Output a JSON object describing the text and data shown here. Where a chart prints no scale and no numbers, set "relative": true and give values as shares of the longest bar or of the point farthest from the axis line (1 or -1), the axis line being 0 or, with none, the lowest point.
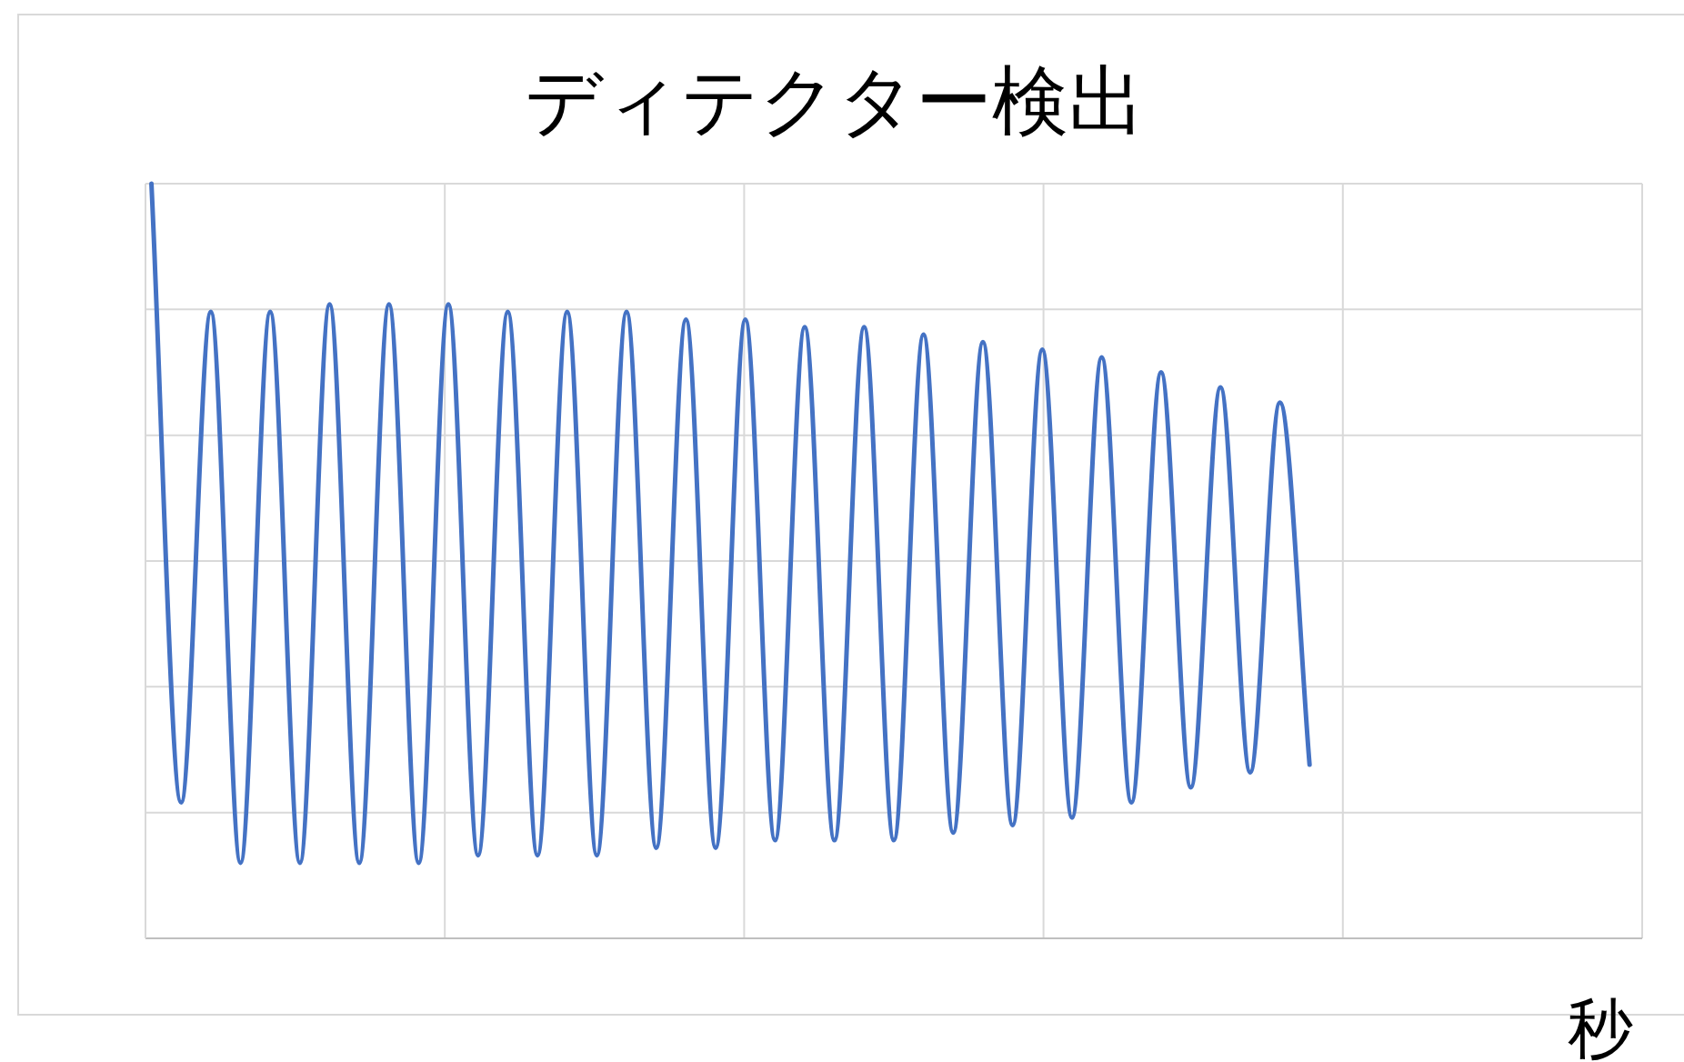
{
  "chart_data": {
    "type": "line",
    "title": "ディテクター検出",
    "xlabel": "秒",
    "relative": true,
    "grid": true,
    "categories": [
      null,
      null,
      null,
      null,
      null,
      null,
      null,
      null,
      null,
      null,
      null,
      null,
      null,
      null,
      null,
      null,
      null,
      null,
      null,
      null,
      null,
      null,
      null,
      null,
      null,
      null,
      null,
      null,
      null,
      null,
      null,
      null,
      null,
      null,
      null,
      null,
      null,
      null,
      null,
      null,
      null,
      null,
      null,
      null,
      null,
      null,
      null,
      null,
      null,
      null,
      null
    ],
    "series": [
      {
        "color": "#4472c4",
        "values": [
          1.0,
          0.18,
          0.83,
          0.1,
          0.83,
          0.1,
          0.84,
          0.1,
          0.84,
          0.1,
          0.84,
          0.11,
          0.83,
          0.11,
          0.83,
          0.11,
          0.83,
          0.12,
          0.82,
          0.12,
          0.82,
          0.13,
          0.81,
          0.13,
          0.81,
          0.13,
          0.8,
          0.14,
          0.79,
          0.15,
          0.78,
          0.16,
          0.77,
          0.18,
          0.75,
          0.2,
          0.73,
          0.22,
          0.71,
          0.23,
          null,
          null,
          null,
          null,
          null,
          null,
          null,
          null,
          null,
          null,
          null
        ]
      }
    ]
  }
}
